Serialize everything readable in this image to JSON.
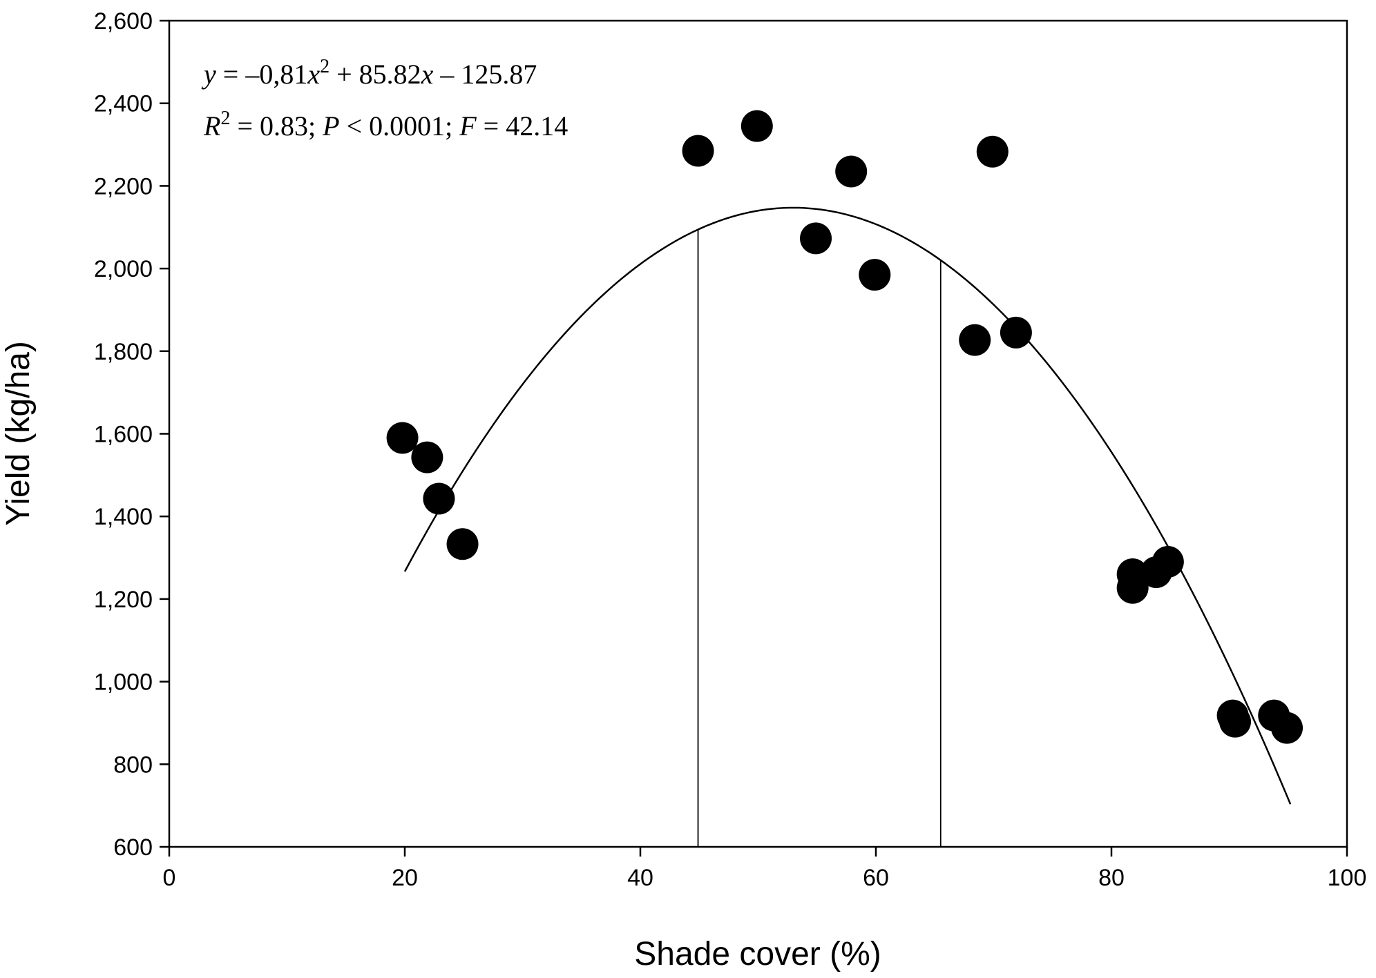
{
  "chart_data": {
    "type": "scatter",
    "xlabel": "Shade cover (%)",
    "ylabel": "Yield (kg/ha)",
    "xlim": [
      0,
      100
    ],
    "ylim": [
      600,
      2600
    ],
    "xticks": [
      "0",
      "20",
      "40",
      "60",
      "80",
      "100"
    ],
    "yticks": [
      "600",
      "800",
      "1,000",
      "1,200",
      "1,400",
      "1,600",
      "1,800",
      "2,000",
      "2,200",
      "2,400",
      "2,600"
    ],
    "grid": false,
    "series": [
      {
        "points": [
          {
            "x": 19.8,
            "y": 1590
          },
          {
            "x": 21.9,
            "y": 1543
          },
          {
            "x": 22.9,
            "y": 1443
          },
          {
            "x": 24.9,
            "y": 1333
          },
          {
            "x": 44.9,
            "y": 2285
          },
          {
            "x": 49.9,
            "y": 2345
          },
          {
            "x": 54.9,
            "y": 2073
          },
          {
            "x": 57.9,
            "y": 2235
          },
          {
            "x": 59.9,
            "y": 1985
          },
          {
            "x": 68.4,
            "y": 1827
          },
          {
            "x": 69.9,
            "y": 2283
          },
          {
            "x": 71.9,
            "y": 1845
          },
          {
            "x": 81.8,
            "y": 1260
          },
          {
            "x": 81.8,
            "y": 1227
          },
          {
            "x": 83.8,
            "y": 1265
          },
          {
            "x": 84.8,
            "y": 1290
          },
          {
            "x": 90.3,
            "y": 918
          },
          {
            "x": 90.5,
            "y": 903
          },
          {
            "x": 93.8,
            "y": 918
          },
          {
            "x": 94.9,
            "y": 888
          }
        ]
      }
    ],
    "fit": {
      "type": "quadratic",
      "a": -0.81,
      "b": 85.82,
      "c": -125.87,
      "x_range": [
        20,
        95.2
      ]
    },
    "vertical_lines": [
      {
        "x": 44.9
      },
      {
        "x": 65.5
      }
    ],
    "annotation": {
      "line1": {
        "y": "y",
        "eq1": " = –0,81",
        "x1": "x",
        "sup1": "2",
        "eq2": " + 85.82",
        "x2": "x",
        "eq3": "  – 125.87"
      },
      "line2": {
        "r": "R",
        "sup": "2",
        "t1": " = 0.83; ",
        "p": "P",
        "t2": " < 0.0001; ",
        "f": "F",
        "t3": " = 42.14"
      }
    }
  }
}
